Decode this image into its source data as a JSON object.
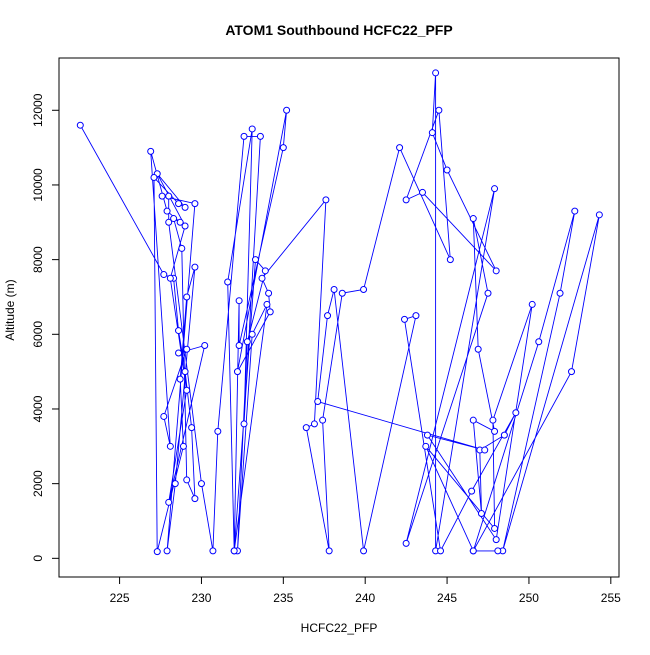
{
  "chart_data": {
    "type": "line",
    "title": "ATOM1 Southbound HCFC22_PFP",
    "xlabel": "HCFC22_PFP",
    "ylabel": "Altitude (m)",
    "xlim": [
      221.3,
      255.5
    ],
    "ylim": [
      -500,
      13400
    ],
    "xticks": [
      225,
      230,
      235,
      240,
      245,
      250,
      255
    ],
    "yticks": [
      0,
      2000,
      4000,
      6000,
      8000,
      10000,
      12000
    ],
    "grid": false,
    "legend": "none",
    "series": [
      {
        "color": "#0000ff",
        "markers": "open-circle",
        "x": [
          222.6,
          227.7,
          228.3,
          228.6,
          229.0,
          229.4,
          229.6,
          229.1,
          228.8,
          228.3,
          228.7,
          227.9,
          226.9,
          228.1,
          227.7,
          229.1,
          228.6,
          230.2,
          228.0,
          229.1,
          228.1,
          229.0,
          227.3,
          229.0,
          228.6,
          227.1,
          227.3,
          228.9,
          228.7,
          229.1,
          229.6,
          228.4,
          227.9,
          229.6,
          227.6,
          228.0,
          228.0,
          230.0,
          230.7,
          231.0,
          232.6,
          233.6,
          232.6,
          233.1,
          231.6,
          232.0,
          233.3,
          233.9,
          232.8,
          232.2,
          233.1,
          234.0,
          232.0,
          232.3,
          232.3,
          235.0,
          235.2,
          232.2,
          234.2,
          234.1,
          233.7,
          237.6,
          236.9,
          236.4,
          237.8,
          237.4,
          238.6,
          239.9,
          242.1,
          245.2,
          244.5,
          242.5,
          243.5,
          248.0,
          245.0,
          244.1,
          244.3,
          244.3,
          247.9,
          242.5,
          247.5,
          246.6,
          246.9,
          247.9,
          246.6,
          247.1,
          247.0,
          248.5,
          249.2,
          246.5,
          244.6,
          242.4,
          243.1,
          239.9,
          238.1,
          237.7,
          237.1,
          247.3,
          243.8,
          248.0,
          250.2,
          247.8,
          247.9,
          243.7,
          246.6,
          250.6,
          252.8,
          251.9,
          248.4,
          254.3,
          252.6,
          246.6,
          248.1
        ]
      }
    ],
    "y": [
      11600,
      7600,
      7500,
      6100,
      5000,
      3500,
      1600,
      2100,
      8300,
      9100,
      9000,
      9300,
      10900,
      3000,
      3800,
      5600,
      5500,
      5700,
      1500,
      4500,
      7500,
      8900,
      10300,
      9400,
      9500,
      10200,
      180,
      3000,
      4800,
      7000,
      7800,
      2000,
      200,
      9500,
      9700,
      9700,
      9000,
      2000,
      200,
      3400,
      11300,
      11300,
      3600,
      11500,
      7400,
      200,
      8000,
      7700,
      5800,
      200,
      6000,
      6800,
      200,
      6900,
      5700,
      11000,
      12000,
      5000,
      6600,
      7100,
      7500,
      9600,
      3600,
      3500,
      200,
      3700,
      7100,
      7200,
      11000,
      8000,
      12000,
      9600,
      9800,
      7700,
      10400,
      11400,
      13000,
      200,
      9900,
      400,
      7100,
      9100,
      5600,
      3400,
      3700,
      1200,
      2900,
      3300,
      3900,
      1800,
      200,
      6400,
      6500,
      200,
      7200,
      6500,
      4200,
      2900,
      3300,
      500,
      6800,
      3700,
      800,
      3000,
      200,
      5800,
      9300,
      7100,
      200,
      9200,
      5000,
      200,
      200
    ]
  }
}
